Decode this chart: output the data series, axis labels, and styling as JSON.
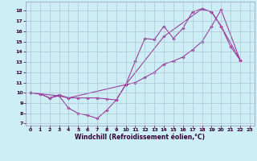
{
  "xlabel": "Windchill (Refroidissement éolien,°C)",
  "xlim": [
    -0.5,
    23.5
  ],
  "ylim": [
    6.8,
    18.9
  ],
  "yticks": [
    7,
    8,
    9,
    10,
    11,
    12,
    13,
    14,
    15,
    16,
    17,
    18
  ],
  "xticks": [
    0,
    1,
    2,
    3,
    4,
    5,
    6,
    7,
    8,
    9,
    10,
    11,
    12,
    13,
    14,
    15,
    16,
    17,
    18,
    19,
    20,
    21,
    22,
    23
  ],
  "bg_color": "#cdeef5",
  "line_color": "#993399",
  "line1_x": [
    0,
    1,
    2,
    3,
    4,
    5,
    6,
    7,
    8,
    9,
    10,
    11,
    12,
    13,
    14,
    15,
    16,
    17,
    18,
    19,
    20,
    21,
    22
  ],
  "line1_y": [
    10,
    9.9,
    9.5,
    9.7,
    8.5,
    8.0,
    7.8,
    7.5,
    8.3,
    9.3,
    10.8,
    13.1,
    15.3,
    15.2,
    16.5,
    15.3,
    16.3,
    17.9,
    18.2,
    17.9,
    16.5,
    14.5,
    13.2
  ],
  "line2_x": [
    0,
    1,
    2,
    3,
    4,
    5,
    6,
    7,
    8,
    9,
    10,
    11,
    12,
    13,
    14,
    15,
    16,
    17,
    18,
    19,
    20,
    22
  ],
  "line2_y": [
    10,
    9.9,
    9.5,
    9.8,
    9.5,
    9.5,
    9.5,
    9.5,
    9.4,
    9.3,
    10.8,
    11.0,
    11.5,
    12.0,
    12.8,
    13.1,
    13.5,
    14.2,
    15.0,
    16.5,
    18.1,
    13.2
  ],
  "line3_x": [
    0,
    3,
    4,
    10,
    14,
    18,
    19,
    20,
    22
  ],
  "line3_y": [
    10,
    9.7,
    9.5,
    10.8,
    15.5,
    18.2,
    17.9,
    16.5,
    13.2
  ],
  "tick_fontsize": 4.5,
  "xlabel_fontsize": 5.5
}
